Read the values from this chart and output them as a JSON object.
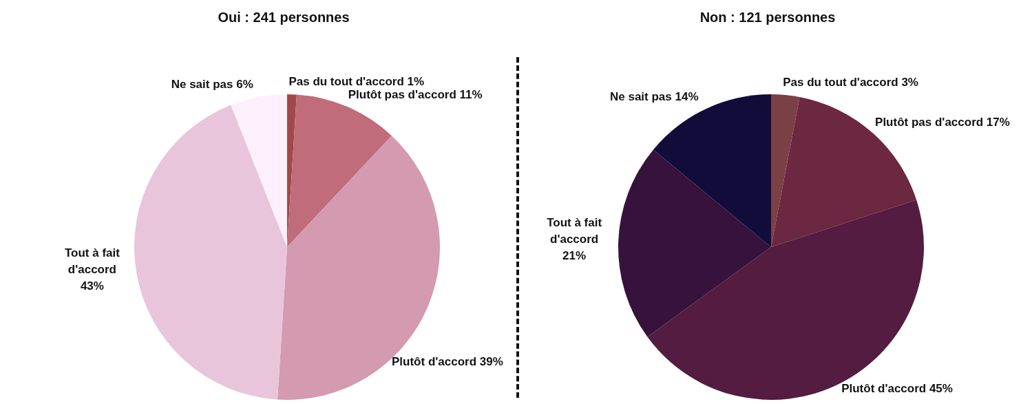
{
  "chart_data": [
    {
      "type": "pie",
      "title": "Oui : 241 personnes",
      "categories": [
        "Pas du tout d'accord",
        "Plutôt pas d'accord",
        "Plutôt d'accord",
        "Tout à fait d'accord",
        "Ne sait pas"
      ],
      "values": [
        1,
        11,
        39,
        43,
        6
      ],
      "value_labels": [
        "1%",
        "11%",
        "39%",
        "43%",
        "6%"
      ],
      "colors": [
        "#a34848",
        "#c06c7a",
        "#d49ab0",
        "#e8c5da",
        "#fdf0fc"
      ]
    },
    {
      "type": "pie",
      "title": "Non : 121 personnes",
      "categories": [
        "Pas du tout d'accord",
        "Plutôt pas d'accord",
        "Plutôt d'accord",
        "Tout à fait d'accord",
        "Ne sait pas"
      ],
      "values": [
        3,
        17,
        45,
        21,
        14
      ],
      "value_labels": [
        "3%",
        "17%",
        "45%",
        "21%",
        "14%"
      ],
      "colors": [
        "#7b4046",
        "#6c2840",
        "#531c40",
        "#37123c",
        "#110c3a"
      ]
    }
  ]
}
